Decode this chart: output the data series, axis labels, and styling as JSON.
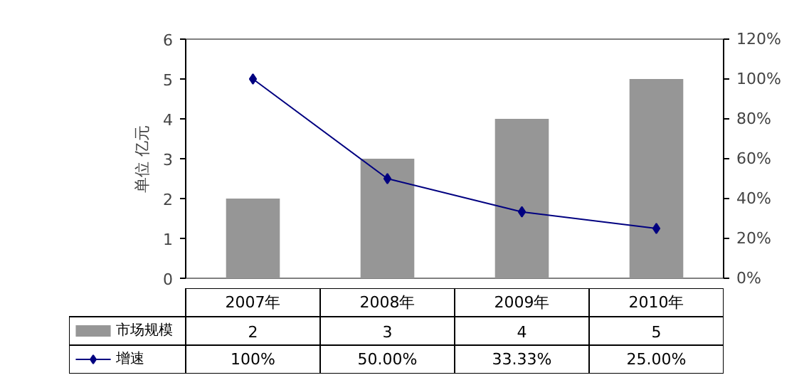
{
  "chart_data": {
    "type": "bar",
    "ylabel": "单位 亿元",
    "categories": [
      "2007年",
      "2008年",
      "2009年",
      "2010年"
    ],
    "series": [
      {
        "name": "市场规模",
        "color": "#969696",
        "values": [
          2,
          3,
          4,
          5
        ],
        "value_labels": [
          "2",
          "3",
          "4",
          "5"
        ]
      },
      {
        "name": "增速",
        "type": "line",
        "axis": "y2",
        "color": "#000080",
        "marker": "diamond",
        "values": [
          100,
          50,
          33.33,
          25
        ],
        "value_labels": [
          "100%",
          "50.00%",
          "33.33%",
          "25.00%"
        ]
      }
    ],
    "ylim": [
      0,
      6
    ],
    "yticks": [
      0,
      1,
      2,
      3,
      4,
      5,
      6
    ],
    "y2lim": [
      0,
      120
    ],
    "y2ticks": [
      {
        "value": 0,
        "label": "0%"
      },
      {
        "value": 20,
        "label": "20%"
      },
      {
        "value": 40,
        "label": "40%"
      },
      {
        "value": 60,
        "label": "60%"
      },
      {
        "value": 80,
        "label": "80%"
      },
      {
        "value": 100,
        "label": "100%"
      },
      {
        "value": 120,
        "label": "120%"
      }
    ],
    "legend": "bottom",
    "grid": false
  }
}
